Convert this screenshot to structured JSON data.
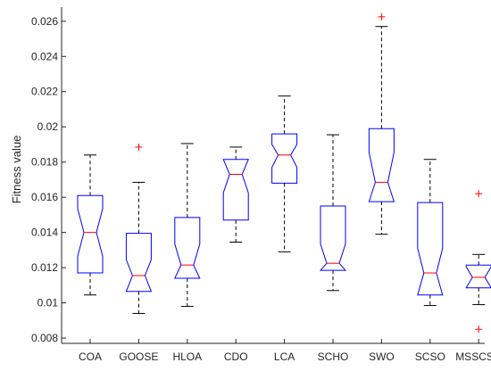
{
  "chart_data": {
    "type": "box",
    "ylabel": "Fitness value",
    "ylim": [
      0.0077,
      0.0268
    ],
    "yticks": [
      "0.008",
      "0.01",
      "0.012",
      "0.014",
      "0.016",
      "0.018",
      "0.02",
      "0.022",
      "0.024",
      "0.026"
    ],
    "ytick_values": [
      0.008,
      0.01,
      0.012,
      0.014,
      0.016,
      0.018,
      0.02,
      0.022,
      0.024,
      0.026
    ],
    "categories": [
      "COA",
      "GOOSE",
      "HLOA",
      "CDO",
      "LCA",
      "SCHO",
      "SWO",
      "SCSO",
      "MSSCSO"
    ],
    "boxes": [
      {
        "name": "COA",
        "min": 0.01045,
        "q1": 0.0117,
        "median": 0.014,
        "q3": 0.0161,
        "max": 0.0184,
        "notch_low": 0.01265,
        "notch_high": 0.01535,
        "outliers": []
      },
      {
        "name": "GOOSE",
        "min": 0.0094,
        "q1": 0.01065,
        "median": 0.01155,
        "q3": 0.01395,
        "max": 0.01685,
        "notch_low": 0.01065,
        "notch_high": 0.01245,
        "outliers": [
          0.01885
        ]
      },
      {
        "name": "HLOA",
        "min": 0.0098,
        "q1": 0.0114,
        "median": 0.01215,
        "q3": 0.01485,
        "max": 0.01905,
        "notch_low": 0.0114,
        "notch_high": 0.01335,
        "outliers": []
      },
      {
        "name": "CDO",
        "min": 0.01345,
        "q1": 0.0147,
        "median": 0.0173,
        "q3": 0.01815,
        "max": 0.01885,
        "notch_low": 0.01625,
        "notch_high": 0.01815,
        "outliers": []
      },
      {
        "name": "LCA",
        "min": 0.0129,
        "q1": 0.0168,
        "median": 0.0184,
        "q3": 0.0196,
        "max": 0.02175,
        "notch_low": 0.0177,
        "notch_high": 0.019,
        "outliers": []
      },
      {
        "name": "SCHO",
        "min": 0.0107,
        "q1": 0.01185,
        "median": 0.01225,
        "q3": 0.0155,
        "max": 0.01955,
        "notch_low": 0.01185,
        "notch_high": 0.01335,
        "outliers": []
      },
      {
        "name": "SWO",
        "min": 0.0139,
        "q1": 0.01575,
        "median": 0.01685,
        "q3": 0.0199,
        "max": 0.0257,
        "notch_low": 0.01575,
        "notch_high": 0.01855,
        "outliers": [
          0.02625
        ]
      },
      {
        "name": "SCSO",
        "min": 0.00985,
        "q1": 0.01045,
        "median": 0.0117,
        "q3": 0.0157,
        "max": 0.01815,
        "notch_low": 0.01045,
        "notch_high": 0.0131,
        "outliers": []
      },
      {
        "name": "MSSCSO",
        "min": 0.0099,
        "q1": 0.01085,
        "median": 0.01145,
        "q3": 0.01215,
        "max": 0.01275,
        "notch_low": 0.01085,
        "notch_high": 0.01205,
        "outliers": [
          0.0162,
          0.0085
        ]
      }
    ],
    "colors": {
      "box": "#0000ff",
      "median": "#ff0000",
      "outlier": "#ff0000",
      "whisker": "#000000"
    },
    "grid": false
  }
}
